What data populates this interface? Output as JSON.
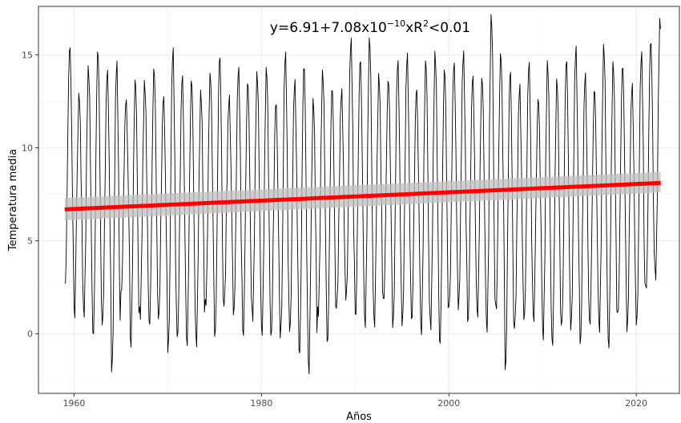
{
  "chart_data": {
    "type": "line",
    "title": "",
    "annotation": {
      "prefix": "y=6.91+7.08x10",
      "exponent": "−10",
      "suffix": "xR",
      "r_exponent": "2",
      "tail": "<0.01"
    },
    "xlabel": "Años",
    "ylabel": "Temperatura media",
    "xlim": [
      1956.2,
      2024.6
    ],
    "ylim": [
      -3.2,
      17.6
    ],
    "x_ticks": [
      1960,
      1980,
      2000,
      2020
    ],
    "x_tick_labels": [
      "1960",
      "1980",
      "2000",
      "2020"
    ],
    "y_ticks": [
      0,
      5,
      10,
      15
    ],
    "y_tick_labels": [
      "0",
      "5",
      "10",
      "15"
    ],
    "grid": true,
    "series": [
      {
        "kind": "monthly",
        "color": "#000000",
        "x_start": 1959.0,
        "x_end": 2022.6,
        "annual_peaks": [
          15.5,
          12.9,
          14.3,
          15.3,
          14.2,
          14.6,
          12.6,
          13.7,
          13.5,
          14.3,
          12.8,
          15.3,
          13.9,
          13.7,
          13.0,
          14.0,
          15.0,
          12.7,
          14.3,
          13.6,
          14.0,
          14.3,
          12.5,
          15.1,
          13.6,
          14.5,
          12.6,
          14.1,
          13.3,
          13.1,
          15.8,
          14.8,
          15.9,
          13.9,
          13.7,
          14.7,
          15.0,
          13.2,
          14.7,
          15.1,
          14.3,
          14.6,
          15.1,
          13.9,
          13.8,
          17.1,
          15.1,
          14.2,
          13.3,
          14.6,
          12.7,
          14.6,
          13.7,
          14.8,
          15.4,
          14.0,
          13.2,
          15.5,
          14.6,
          14.5,
          13.4,
          15.1,
          15.8,
          16.9
        ],
        "annual_troughs": [
          2.5,
          0.9,
          1.0,
          -0.2,
          0.5,
          -2.0,
          2.1,
          -0.7,
          0.9,
          0.4,
          0.8,
          -0.9,
          -0.3,
          -0.7,
          -0.6,
          1.5,
          -0.2,
          1.6,
          1.0,
          -0.2,
          0.8,
          -0.1,
          -0.2,
          -0.1,
          0.1,
          -1.2,
          -2.1,
          1.0,
          -0.6,
          1.5,
          1.9,
          0.8,
          0.4,
          0.4,
          1.7,
          0.4,
          0.5,
          0.6,
          0.0,
          0.3,
          -0.7,
          1.5,
          1.4,
          0.5,
          0.9,
          0.2,
          1.2,
          -2.0,
          0.4,
          0.7,
          0.6,
          -0.2,
          -0.7,
          0.4,
          0.3,
          -0.6,
          0.4,
          0.2,
          -0.8,
          1.0,
          0.2,
          0.5,
          2.3,
          3.0
        ]
      },
      {
        "kind": "linear_fit",
        "color": "#ff0000",
        "band_color": "#bfbfbf",
        "x": [
          1959.0,
          2022.6
        ],
        "y": [
          6.69,
          8.11
        ],
        "ci_low": [
          6.1,
          7.6
        ],
        "ci_high": [
          7.3,
          8.7
        ]
      }
    ]
  }
}
